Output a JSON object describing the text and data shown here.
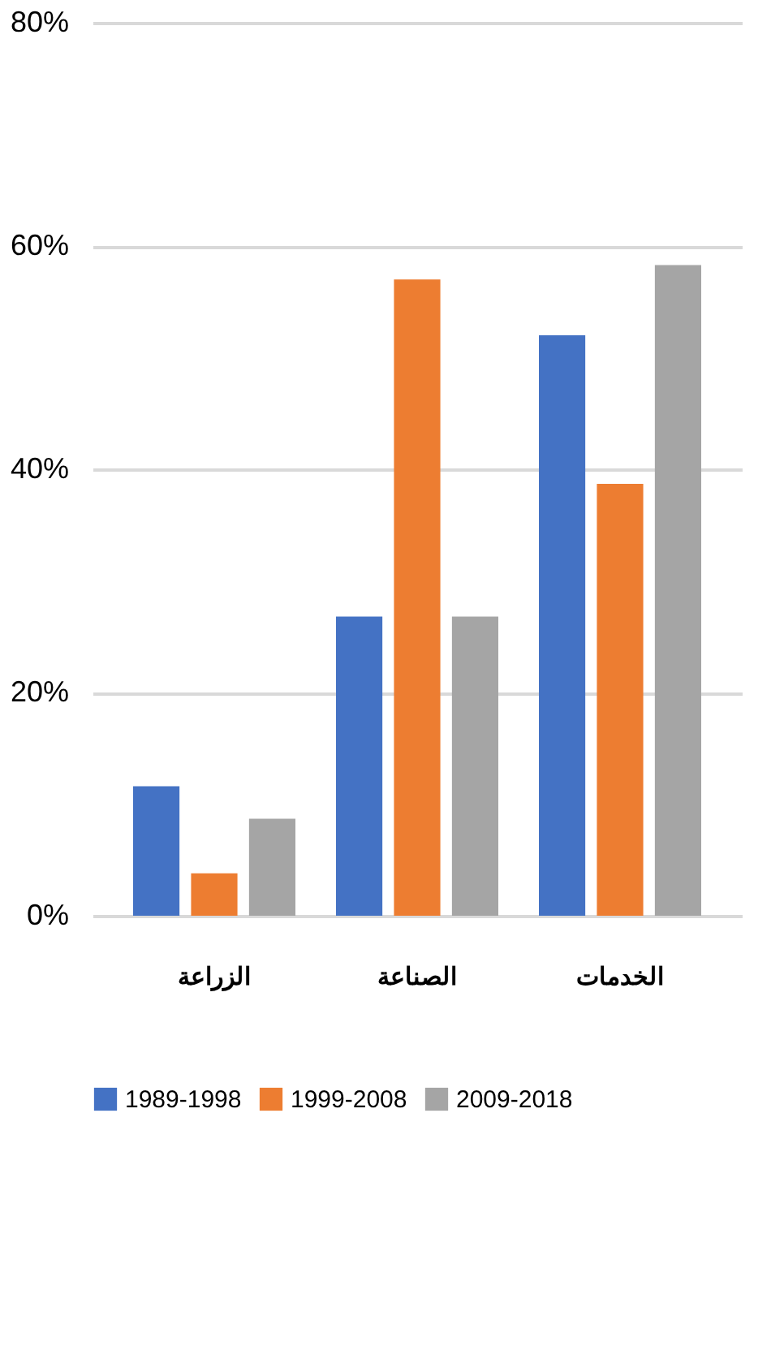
{
  "chart_data": {
    "type": "bar",
    "categories": [
      "الزراعة",
      "الصناعة",
      "الخدمات"
    ],
    "series": [
      {
        "name": "1989-1998",
        "color": "#4472c4",
        "values": [
          11.6,
          26.8,
          52
        ]
      },
      {
        "name": "1999-2008",
        "color": "#ed7d31",
        "values": [
          3.8,
          57,
          38.7
        ]
      },
      {
        "name": "2009-2018",
        "color": "#a5a5a5",
        "values": [
          8.7,
          26.8,
          58.3
        ]
      }
    ],
    "ylim": [
      0,
      80
    ],
    "yticks": [
      {
        "value": 0,
        "label": "0%"
      },
      {
        "value": 20,
        "label": "20%"
      },
      {
        "value": 40,
        "label": "40%"
      },
      {
        "value": 60,
        "label": "60%"
      },
      {
        "value": 80,
        "label": "80%"
      }
    ],
    "grid": "y",
    "legend": "bottom"
  }
}
